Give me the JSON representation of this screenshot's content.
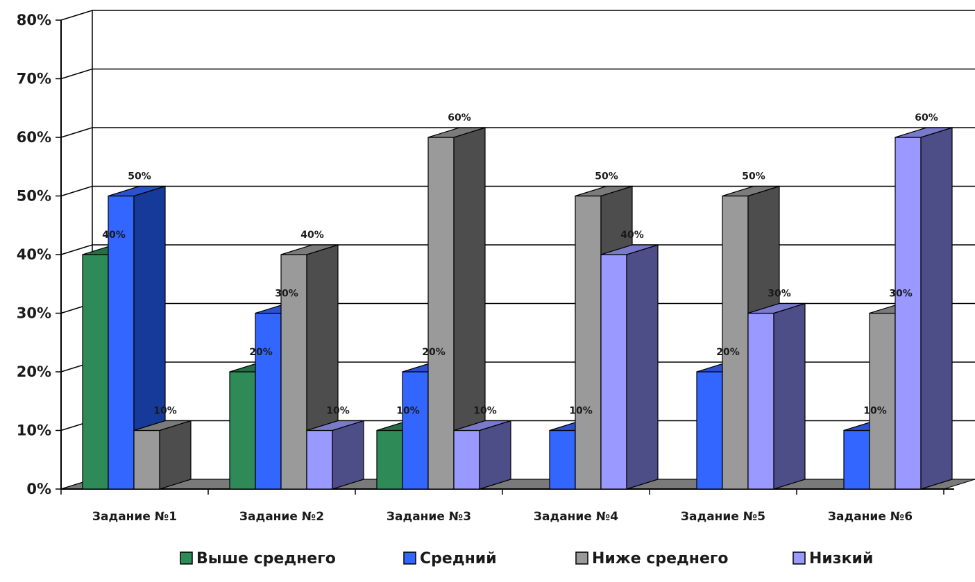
{
  "chart_data": {
    "type": "bar",
    "categories": [
      "Задание №1",
      "Задание №2",
      "Задание №3",
      "Задание №4",
      "Задание №5",
      "Задание №6"
    ],
    "series": [
      {
        "name": "Выше среднего",
        "values": [
          40,
          20,
          10,
          0,
          0,
          0
        ],
        "color": "#2e8b57"
      },
      {
        "name": "Средний",
        "values": [
          50,
          30,
          20,
          10,
          20,
          10
        ],
        "color": "#3366ff"
      },
      {
        "name": "Ниже среднего",
        "values": [
          10,
          40,
          60,
          50,
          50,
          30
        ],
        "color": "#9a9a9a"
      },
      {
        "name": "Низкий",
        "values": [
          0,
          10,
          10,
          40,
          30,
          60
        ],
        "color": "#9999ff"
      }
    ],
    "data_labels": [
      [
        "40%",
        "50%",
        "10%",
        null
      ],
      [
        "20%",
        "30%",
        "40%",
        "10%"
      ],
      [
        "10%",
        "20%",
        "60%",
        "10%"
      ],
      [
        null,
        "10%",
        "50%",
        "40%"
      ],
      [
        null,
        "20%",
        "50%",
        "30%"
      ],
      [
        null,
        "10%",
        "30%",
        "60%"
      ]
    ],
    "y_ticks": [
      "0%",
      "10%",
      "20%",
      "30%",
      "40%",
      "50%",
      "60%",
      "70%",
      "80%"
    ],
    "ylim": [
      0,
      80
    ],
    "unit": "%",
    "grid": true,
    "legend_position": "bottom",
    "style": "3d-clustered-column"
  }
}
